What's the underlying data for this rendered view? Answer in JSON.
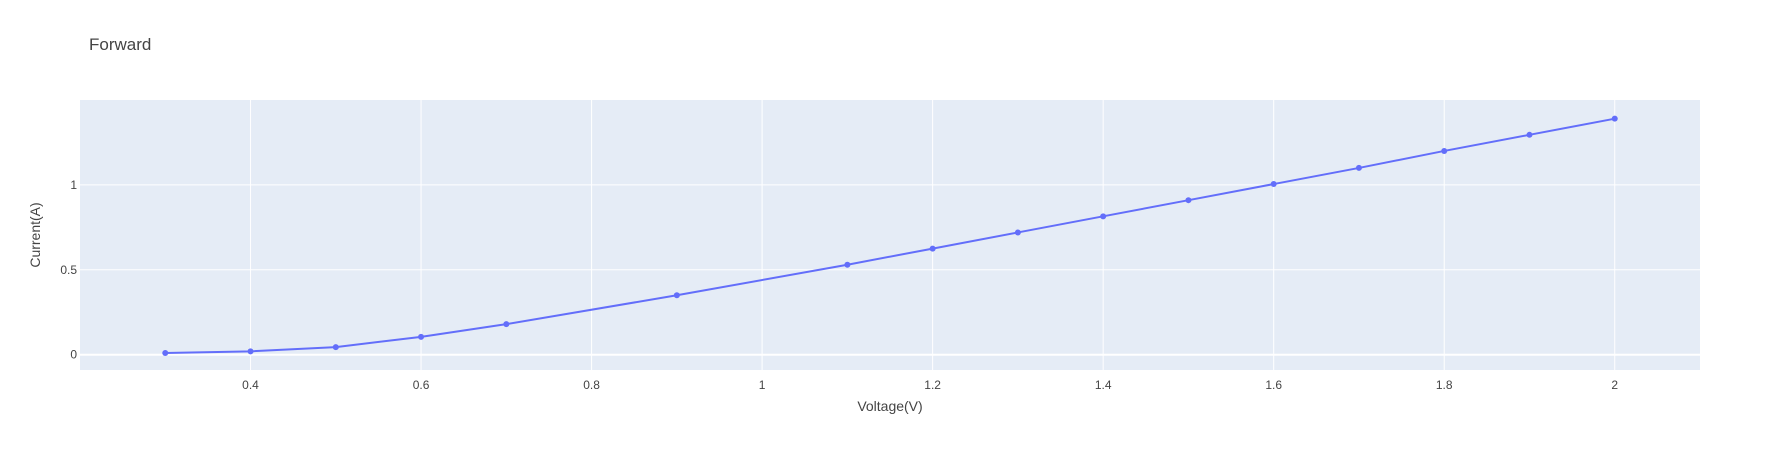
{
  "chart_data": {
    "type": "line",
    "title": "Forward",
    "xlabel": "Voltage(V)",
    "ylabel": "Current(A)",
    "xlim": [
      0.2,
      2.1
    ],
    "ylim": [
      -0.09,
      1.5
    ],
    "xticks": [
      0.4,
      0.6,
      0.8,
      1,
      1.2,
      1.4,
      1.6,
      1.8,
      2
    ],
    "xtick_labels": [
      "0.4",
      "0.6",
      "0.8",
      "1",
      "1.2",
      "1.4",
      "1.6",
      "1.8",
      "2"
    ],
    "yticks": [
      0,
      0.5,
      1
    ],
    "ytick_labels": [
      "0",
      "0.5",
      "1"
    ],
    "grid": true,
    "series": [
      {
        "color": "#636efa",
        "mode": "lines+markers",
        "x": [
          0.3,
          0.4,
          0.5,
          0.6,
          0.7,
          0.9,
          1.1,
          1.2,
          1.3,
          1.4,
          1.5,
          1.6,
          1.7,
          1.8,
          1.9,
          2.0
        ],
        "y": [
          0.01,
          0.02,
          0.045,
          0.105,
          0.18,
          0.35,
          0.53,
          0.625,
          0.72,
          0.815,
          0.91,
          1.005,
          1.1,
          1.2,
          1.295,
          1.39
        ]
      }
    ],
    "colors": {
      "plot_bg": "#e5ecf6",
      "grid": "#ffffff",
      "text": "#444444"
    }
  }
}
